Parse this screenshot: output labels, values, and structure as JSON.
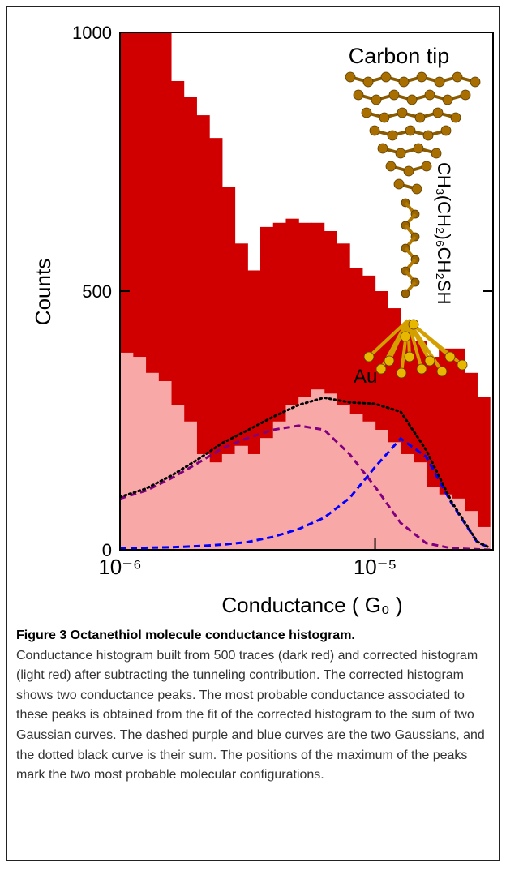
{
  "chart_data": {
    "type": "histogram",
    "xlabel": "Conductance ( G₀ )",
    "ylabel": "Counts",
    "xscale": "log",
    "xlim": [
      1e-06,
      2.9e-05
    ],
    "ylim": [
      0,
      1000
    ],
    "xticks": [
      {
        "value": 1e-06,
        "label": "10⁻⁶"
      },
      {
        "value": 1e-05,
        "label": "10⁻⁵"
      }
    ],
    "yticks": [
      0,
      500,
      1000
    ],
    "bins": [
      1e-06,
      1.122e-06,
      1.259e-06,
      1.413e-06,
      1.585e-06,
      1.778e-06,
      1.995e-06,
      2.239e-06,
      2.512e-06,
      2.818e-06,
      3.162e-06,
      3.548e-06,
      3.981e-06,
      4.467e-06,
      5.012e-06,
      5.623e-06,
      6.31e-06,
      7.079e-06,
      7.943e-06,
      8.913e-06,
      1e-05,
      1.122e-05,
      1.259e-05,
      1.413e-05,
      1.585e-05,
      1.778e-05,
      1.995e-05,
      2.239e-05,
      2.512e-05,
      2.818e-05
    ],
    "series": [
      {
        "color": "#d00000",
        "values": [
          1100,
          1050,
          1020,
          1010,
          906,
          875,
          840,
          796,
          702,
          592,
          540,
          624,
          632,
          640,
          632,
          632,
          616,
          592,
          545,
          530,
          500,
          467,
          436,
          404,
          373,
          389,
          389,
          342,
          295
        ]
      },
      {
        "color": "#f9a8a8",
        "values": [
          381,
          373,
          342,
          326,
          279,
          248,
          185,
          169,
          185,
          201,
          185,
          216,
          248,
          279,
          295,
          310,
          302,
          279,
          263,
          248,
          232,
          208,
          185,
          169,
          122,
          107,
          99,
          75,
          44
        ]
      }
    ],
    "curves": {
      "x": [
        1e-06,
        1.259e-06,
        1.585e-06,
        1.995e-06,
        2.512e-06,
        3.162e-06,
        3.981e-06,
        5.012e-06,
        6.31e-06,
        7.943e-06,
        1e-05,
        1.259e-05,
        1.585e-05,
        1.995e-05,
        2.512e-05,
        2.818e-05
      ],
      "series": [
        {
          "color": "#800080",
          "dash": "dashed",
          "values": [
            99,
            114,
            138,
            166,
            196,
            216,
            232,
            240,
            232,
            185,
            122,
            52,
            13,
            3,
            1,
            0
          ]
        },
        {
          "color": "#0000ff",
          "dash": "dashed",
          "values": [
            3,
            4,
            5,
            7,
            10,
            15,
            25,
            40,
            62,
            100,
            160,
            215,
            180,
            90,
            15,
            4
          ]
        },
        {
          "color": "#000000",
          "dash": "dotted",
          "values": [
            102,
            118,
            143,
            173,
            206,
            231,
            257,
            280,
            294,
            285,
            282,
            267,
            193,
            93,
            16,
            4
          ]
        }
      ]
    },
    "annotations": [
      "Carbon tip",
      "CH₃(CH₂)₆CH₂SH",
      "Au"
    ]
  },
  "caption": {
    "label": "Figure 3 Octanethiol molecule conductance histogram.",
    "text": "Conductance histogram built from 500 traces (dark red) and corrected histogram (light red) after subtracting the tunneling contribution. The corrected histogram shows two conductance peaks. The most probable conductance associated to these peaks is obtained from the fit of the corrected histogram to the sum of two Gaussian curves. The dashed purple and blue curves are the two Gaussians, and the dotted black curve is their sum. The positions of the maximum of the peaks mark the two most probable molecular configurations."
  }
}
